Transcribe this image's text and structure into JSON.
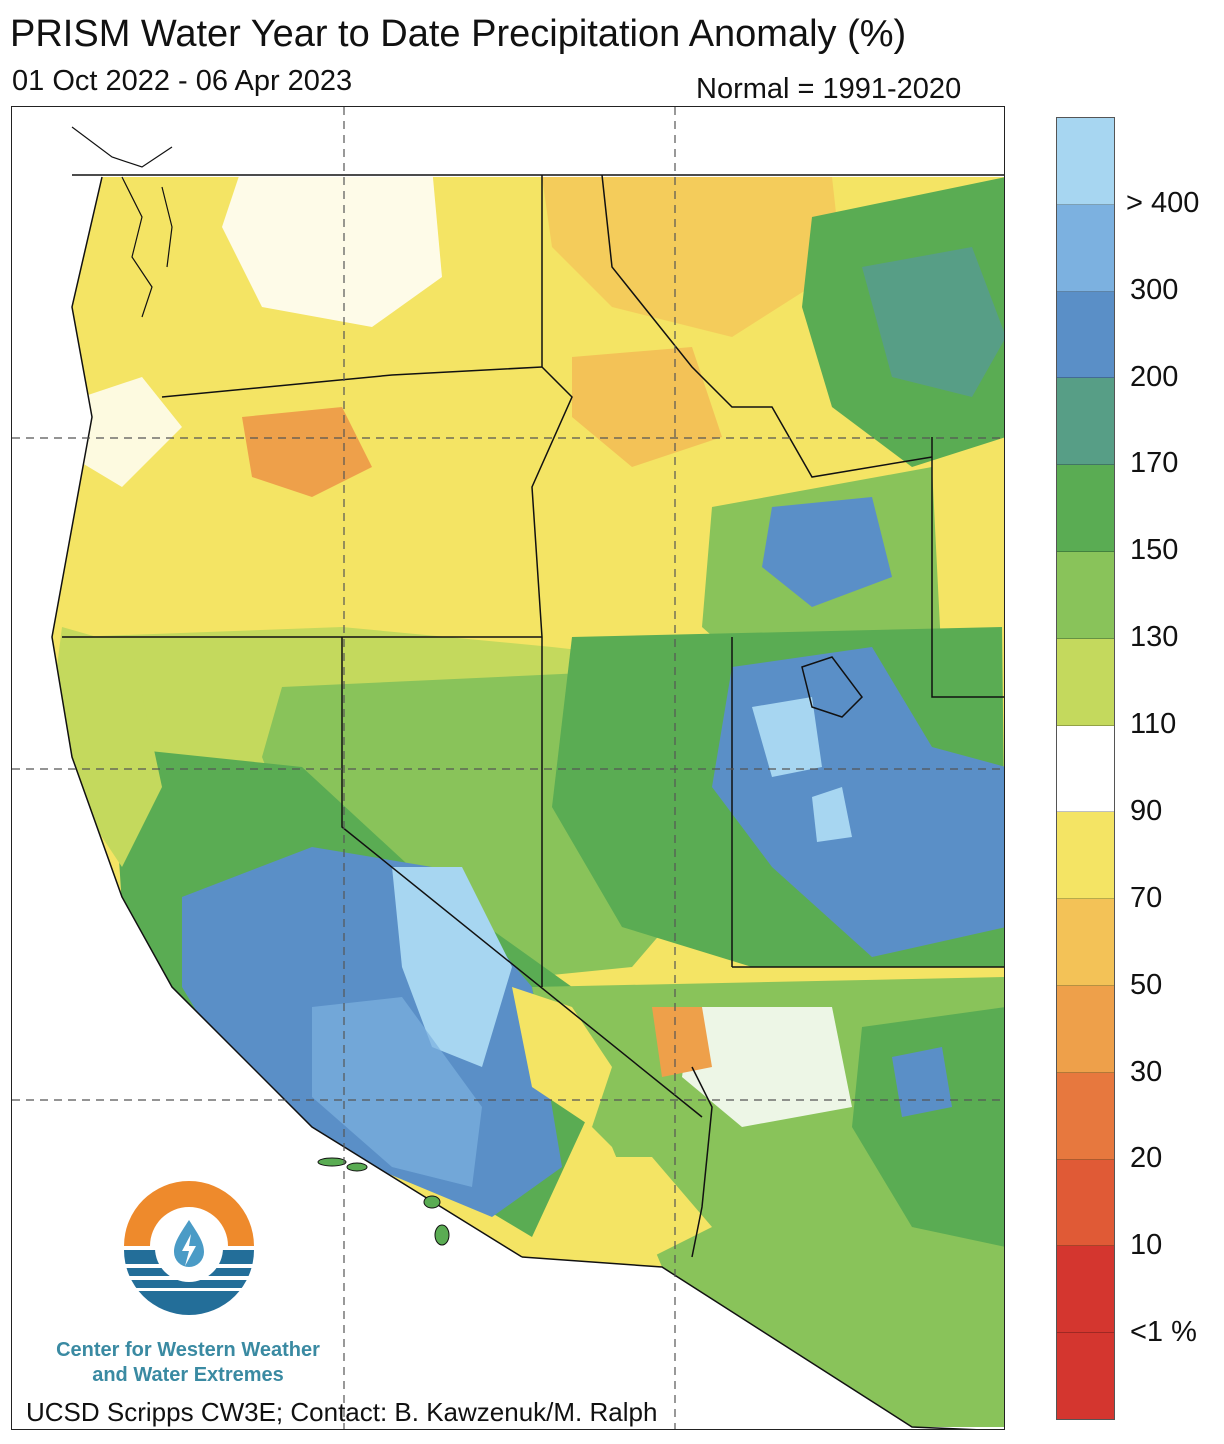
{
  "header": {
    "title": "PRISM Water Year to Date Precipitation Anomaly (%)",
    "date_range": "01 Oct 2022 - 06 Apr 2023",
    "normal": "Normal = 1991-2020"
  },
  "map": {
    "region": "Western United States",
    "variable": "Precipitation anomaly (% of normal)"
  },
  "legend": {
    "bins_top_to_bottom": [
      {
        "color": "#a7d6f1",
        "label": "> 400"
      },
      {
        "color": "#7cb1e0",
        "label": "300"
      },
      {
        "color": "#5a8fc7",
        "label": "200"
      },
      {
        "color": "#579e86",
        "label": "170"
      },
      {
        "color": "#5aac53",
        "label": "150"
      },
      {
        "color": "#89c35a",
        "label": "130"
      },
      {
        "color": "#c4d95d",
        "label": "110"
      },
      {
        "color": "#ffffff",
        "label": "90"
      },
      {
        "color": "#f4e464",
        "label": "70"
      },
      {
        "color": "#f3c257",
        "label": "50"
      },
      {
        "color": "#eea04a",
        "label": "30"
      },
      {
        "color": "#e7783e",
        "label": "20"
      },
      {
        "color": "#e05a36",
        "label": "10"
      },
      {
        "color": "#d4362f",
        "label": "<1 %"
      },
      {
        "color": "#d4362f",
        "label": ""
      }
    ]
  },
  "branding": {
    "org_line1": "Center for Western Weather",
    "org_line2": "and Water Extremes",
    "credit": "UCSD Scripps CW3E; Contact: B. Kawzenuk/M. Ralph",
    "logo_colors": {
      "orange": "#ee8a2c",
      "blue": "#236e99",
      "light_blue": "#4a9bc6"
    }
  }
}
